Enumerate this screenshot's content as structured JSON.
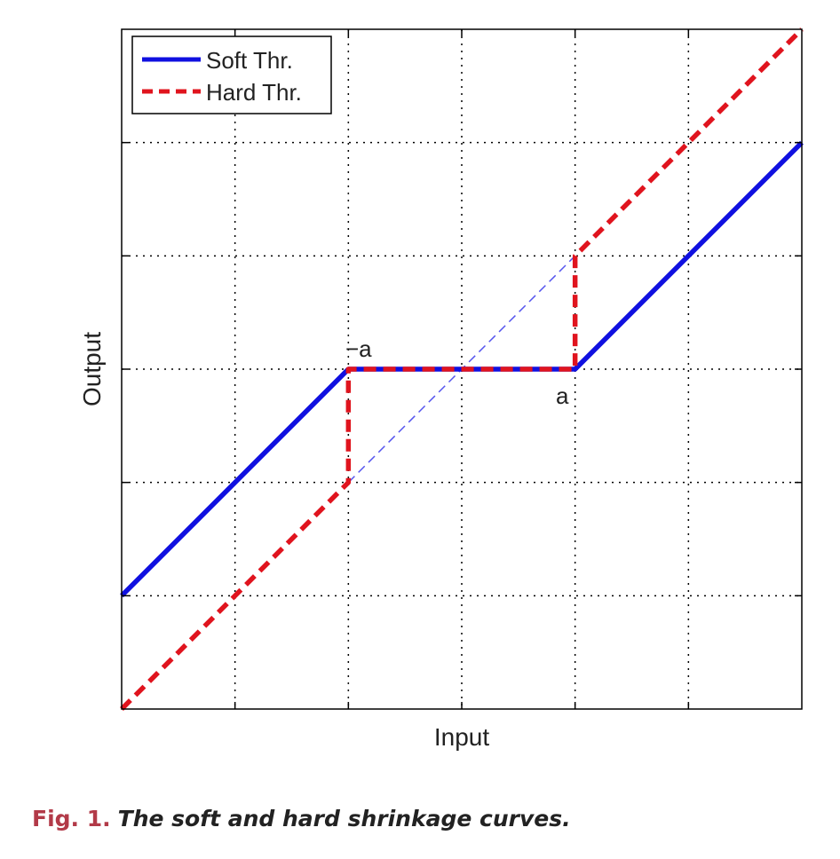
{
  "chart_data": {
    "type": "line",
    "xlabel": "Input",
    "ylabel": "Output",
    "xlim": [
      -3,
      3
    ],
    "ylim": [
      -3,
      3
    ],
    "grid": true,
    "legend_position": "top-left",
    "threshold_labels": {
      "neg": "−a",
      "pos": "a"
    },
    "series": [
      {
        "name": "Soft Thr.",
        "color": "#1010e0",
        "style": "solid",
        "x": [
          -3,
          -1,
          1,
          3
        ],
        "y": [
          -2,
          0,
          0,
          2
        ]
      },
      {
        "name": "Hard Thr.",
        "color": "#e0141e",
        "style": "dashed",
        "x": [
          -3,
          -1,
          -1,
          1,
          1,
          3
        ],
        "y": [
          -3,
          -1,
          0,
          0,
          1,
          3
        ]
      }
    ],
    "reference_line": {
      "x": [
        -1,
        1
      ],
      "y": [
        -1,
        1
      ],
      "color": "#5555ee",
      "style": "thin-dashed"
    }
  },
  "caption": {
    "label": "Fig. 1.",
    "text": "The soft and hard shrinkage curves."
  }
}
